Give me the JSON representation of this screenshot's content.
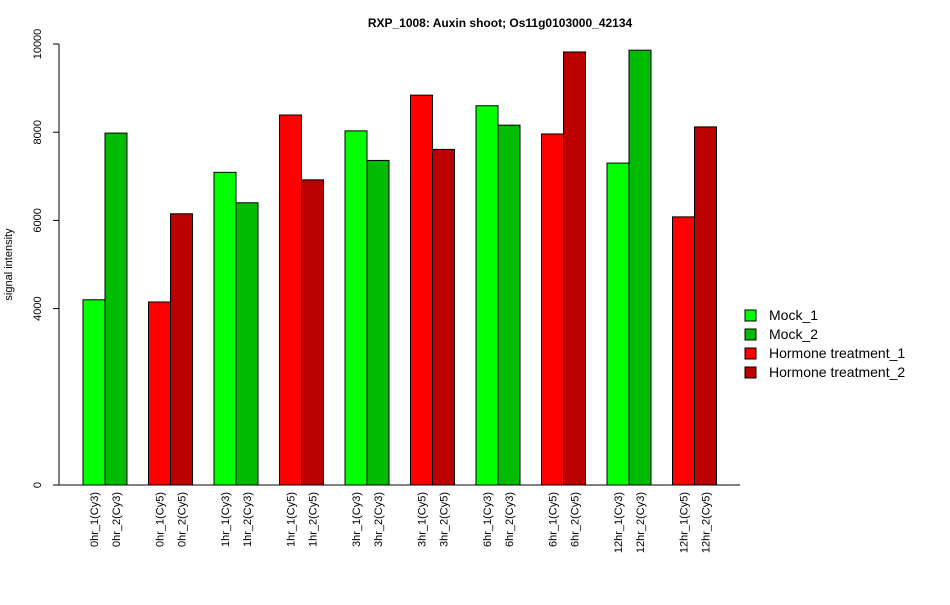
{
  "chart_data": {
    "type": "bar",
    "title": "RXP_1008: Auxin shoot; Os11g0103000_42134",
    "xlabel": "",
    "ylabel": "signal intensity",
    "ylim": [
      0,
      10000
    ],
    "y_ticks": [
      0,
      4000,
      6000,
      8000,
      10000
    ],
    "grid": false,
    "legend_position": "right",
    "legend": [
      {
        "name": "Mock_1",
        "color": "#00ff00"
      },
      {
        "name": "Mock_2",
        "color": "#00bb00"
      },
      {
        "name": "Hormone treatment_1",
        "color": "#ff0000"
      },
      {
        "name": "Hormone treatment_2",
        "color": "#bb0000"
      }
    ],
    "groups": [
      {
        "bars": [
          {
            "label": "0hr_1(Cy3)",
            "value": 4200,
            "color": "#00ff00"
          },
          {
            "label": "0hr_2(Cy3)",
            "value": 7980,
            "color": "#00bb00"
          }
        ]
      },
      {
        "bars": [
          {
            "label": "0hr_1(Cy5)",
            "value": 4150,
            "color": "#ff0000"
          },
          {
            "label": "0hr_2(Cy5)",
            "value": 6150,
            "color": "#bb0000"
          }
        ]
      },
      {
        "bars": [
          {
            "label": "1hr_1(Cy3)",
            "value": 7090,
            "color": "#00ff00"
          },
          {
            "label": "1hr_2(Cy3)",
            "value": 6400,
            "color": "#00bb00"
          }
        ]
      },
      {
        "bars": [
          {
            "label": "1hr_1(Cy5)",
            "value": 8390,
            "color": "#ff0000"
          },
          {
            "label": "1hr_2(Cy5)",
            "value": 6920,
            "color": "#bb0000"
          }
        ]
      },
      {
        "bars": [
          {
            "label": "3hr_1(Cy3)",
            "value": 8030,
            "color": "#00ff00"
          },
          {
            "label": "3hr_2(Cy3)",
            "value": 7360,
            "color": "#00bb00"
          }
        ]
      },
      {
        "bars": [
          {
            "label": "3hr_1(Cy5)",
            "value": 8840,
            "color": "#ff0000"
          },
          {
            "label": "3hr_2(Cy5)",
            "value": 7610,
            "color": "#bb0000"
          }
        ]
      },
      {
        "bars": [
          {
            "label": "6hr_1(Cy3)",
            "value": 8600,
            "color": "#00ff00"
          },
          {
            "label": "6hr_2(Cy3)",
            "value": 8160,
            "color": "#00bb00"
          }
        ]
      },
      {
        "bars": [
          {
            "label": "6hr_1(Cy5)",
            "value": 7960,
            "color": "#ff0000"
          },
          {
            "label": "6hr_2(Cy5)",
            "value": 9820,
            "color": "#bb0000"
          }
        ]
      },
      {
        "bars": [
          {
            "label": "12hr_1(Cy3)",
            "value": 7300,
            "color": "#00ff00"
          },
          {
            "label": "12hr_2(Cy3)",
            "value": 9860,
            "color": "#00bb00"
          }
        ]
      },
      {
        "bars": [
          {
            "label": "12hr_1(Cy5)",
            "value": 6080,
            "color": "#ff0000"
          },
          {
            "label": "12hr_2(Cy5)",
            "value": 8120,
            "color": "#bb0000"
          }
        ]
      }
    ]
  }
}
